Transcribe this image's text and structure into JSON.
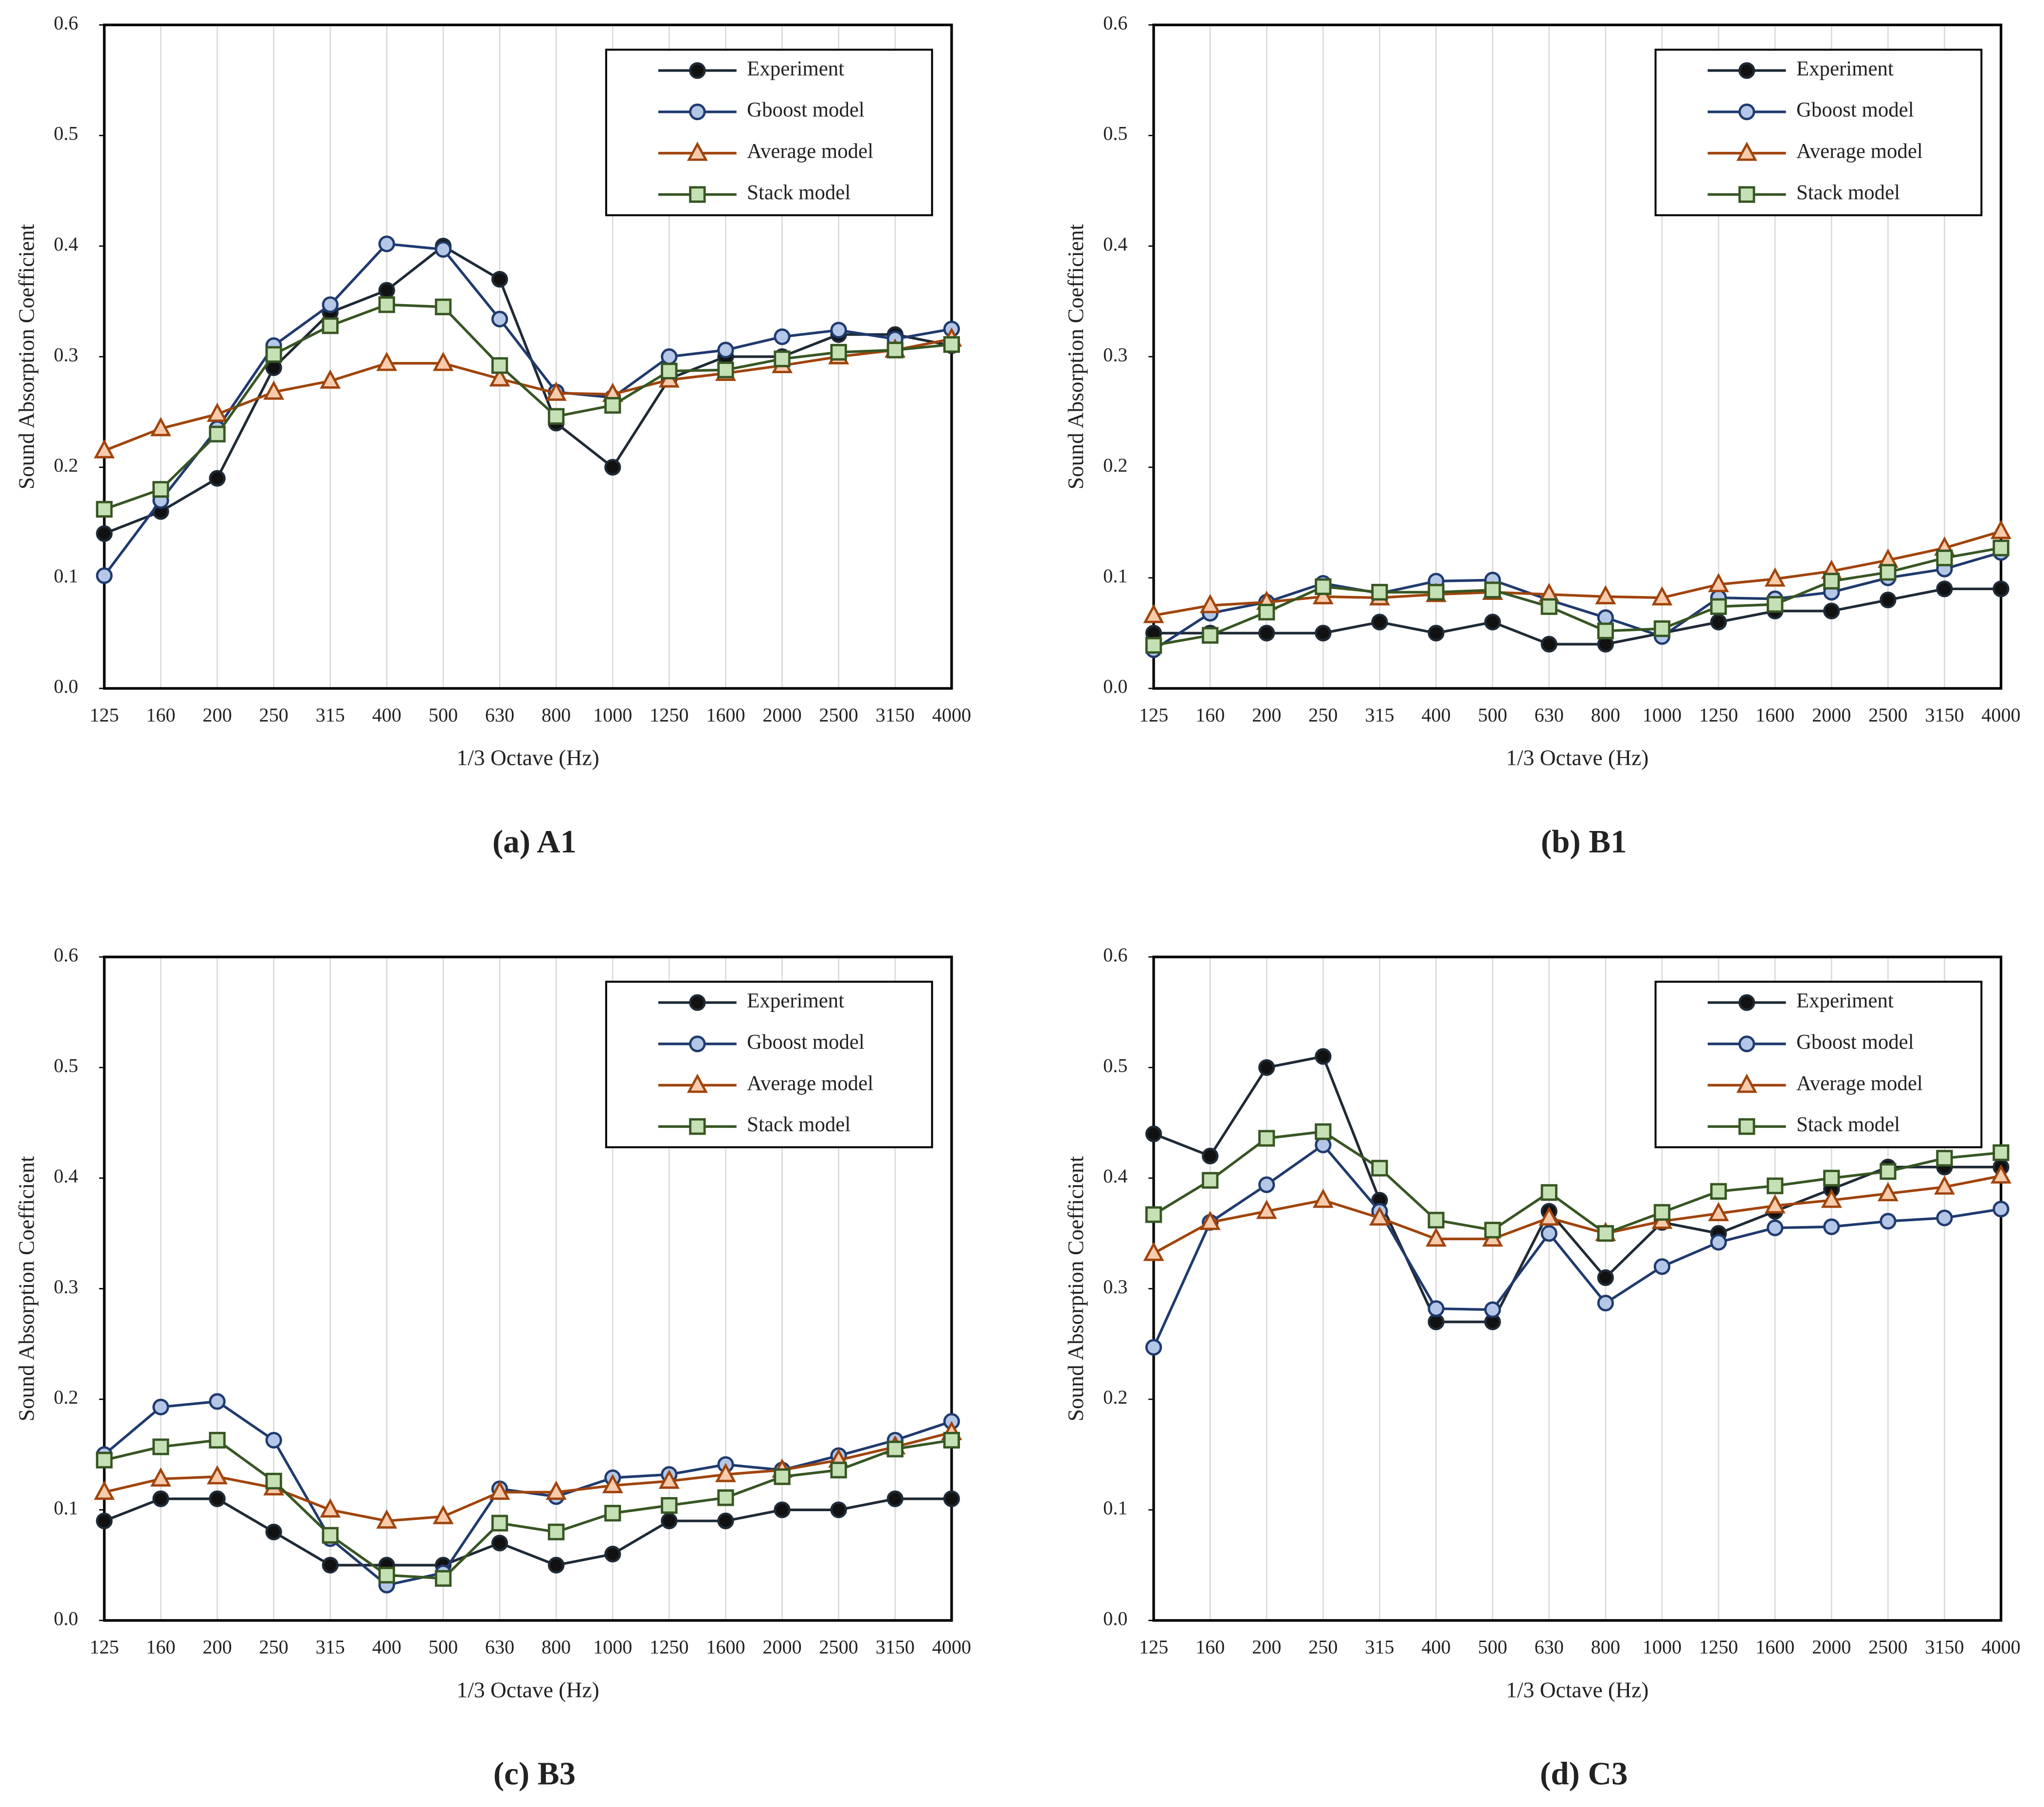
{
  "chart_data": [
    {
      "type": "line",
      "title": "(a) A1",
      "x_label": "1/3 Octave (Hz)",
      "y_label": "Sound Absorption Coefficient",
      "categories": [
        "125",
        "160",
        "200",
        "250",
        "315",
        "400",
        "500",
        "630",
        "800",
        "1000",
        "1250",
        "1600",
        "2000",
        "2500",
        "3150",
        "4000"
      ],
      "ylim": [
        0,
        0.6
      ],
      "yticks": [
        {
          "value": 0,
          "label": "0.0"
        },
        0.1,
        0.2,
        0.3,
        0.4,
        0.5,
        0.6
      ],
      "grid": "x",
      "legend": "top-right",
      "series": [
        {
          "name": "Experiment",
          "color": "#1f2a36",
          "marker": "circle",
          "marker_fill": "#111111",
          "values": [
            0.14,
            0.16,
            0.19,
            0.29,
            0.34,
            0.36,
            0.4,
            0.37,
            0.24,
            0.2,
            0.28,
            0.3,
            0.3,
            0.32,
            0.32,
            0.31
          ]
        },
        {
          "name": "Gboost model",
          "color": "#1f3a6e",
          "marker": "circle",
          "marker_fill": "#b4c7e7",
          "values": [
            0.102,
            0.17,
            0.235,
            0.31,
            0.347,
            0.402,
            0.397,
            0.334,
            0.268,
            0.263,
            0.3,
            0.306,
            0.318,
            0.324,
            0.316,
            0.325
          ]
        },
        {
          "name": "Average model",
          "color": "#a0440c",
          "marker": "triangle",
          "marker_fill": "#f8cbad",
          "values": [
            0.215,
            0.235,
            0.248,
            0.268,
            0.278,
            0.294,
            0.294,
            0.28,
            0.267,
            0.266,
            0.279,
            0.285,
            0.292,
            0.3,
            0.306,
            0.316
          ]
        },
        {
          "name": "Stack model",
          "color": "#375623",
          "marker": "square",
          "marker_fill": "#c5e0b4",
          "values": [
            0.162,
            0.18,
            0.23,
            0.302,
            0.328,
            0.347,
            0.345,
            0.292,
            0.246,
            0.256,
            0.287,
            0.288,
            0.298,
            0.304,
            0.306,
            0.311
          ]
        }
      ]
    },
    {
      "type": "line",
      "title": "(b) B1",
      "x_label": "1/3 Octave (Hz)",
      "y_label": "Sound Absorption Coefficient",
      "categories": [
        "125",
        "160",
        "200",
        "250",
        "315",
        "400",
        "500",
        "630",
        "800",
        "1000",
        "1250",
        "1600",
        "2000",
        "2500",
        "3150",
        "4000"
      ],
      "ylim": [
        0,
        0.6
      ],
      "yticks": [
        {
          "value": 0,
          "label": "0.0"
        },
        0.1,
        0.2,
        0.3,
        0.4,
        0.5,
        0.6
      ],
      "grid": "x",
      "legend": "top-right",
      "series": [
        {
          "name": "Experiment",
          "color": "#1f2a36",
          "marker": "circle",
          "marker_fill": "#111111",
          "values": [
            0.05,
            0.05,
            0.05,
            0.05,
            0.06,
            0.05,
            0.06,
            0.04,
            0.04,
            0.05,
            0.06,
            0.07,
            0.07,
            0.08,
            0.09,
            0.09
          ]
        },
        {
          "name": "Gboost model",
          "color": "#1f3a6e",
          "marker": "circle",
          "marker_fill": "#b4c7e7",
          "values": [
            0.035,
            0.068,
            0.078,
            0.095,
            0.086,
            0.097,
            0.098,
            0.08,
            0.064,
            0.047,
            0.082,
            0.081,
            0.087,
            0.1,
            0.108,
            0.123
          ]
        },
        {
          "name": "Average model",
          "color": "#a0440c",
          "marker": "triangle",
          "marker_fill": "#f8cbad",
          "values": [
            0.066,
            0.075,
            0.078,
            0.083,
            0.082,
            0.085,
            0.087,
            0.085,
            0.083,
            0.082,
            0.094,
            0.099,
            0.106,
            0.116,
            0.127,
            0.142
          ]
        },
        {
          "name": "Stack model",
          "color": "#375623",
          "marker": "square",
          "marker_fill": "#c5e0b4",
          "values": [
            0.039,
            0.048,
            0.069,
            0.092,
            0.087,
            0.087,
            0.089,
            0.074,
            0.052,
            0.054,
            0.074,
            0.076,
            0.097,
            0.105,
            0.118,
            0.127
          ]
        }
      ]
    },
    {
      "type": "line",
      "title": "(c) B3",
      "x_label": "1/3 Octave (Hz)",
      "y_label": "Sound Absorption Coefficient",
      "categories": [
        "125",
        "160",
        "200",
        "250",
        "315",
        "400",
        "500",
        "630",
        "800",
        "1000",
        "1250",
        "1600",
        "2000",
        "2500",
        "3150",
        "4000"
      ],
      "ylim": [
        0,
        0.6
      ],
      "yticks": [
        {
          "value": 0,
          "label": "0.0"
        },
        0.1,
        0.2,
        0.3,
        0.4,
        0.5,
        0.6
      ],
      "grid": "x",
      "legend": "top-right",
      "series": [
        {
          "name": "Experiment",
          "color": "#1f2a36",
          "marker": "circle",
          "marker_fill": "#111111",
          "values": [
            0.09,
            0.11,
            0.11,
            0.08,
            0.05,
            0.05,
            0.05,
            0.07,
            0.05,
            0.06,
            0.09,
            0.09,
            0.1,
            0.1,
            0.11,
            0.11
          ]
        },
        {
          "name": "Gboost model",
          "color": "#1f3a6e",
          "marker": "circle",
          "marker_fill": "#b4c7e7",
          "values": [
            0.15,
            0.193,
            0.198,
            0.163,
            0.074,
            0.032,
            0.043,
            0.119,
            0.112,
            0.129,
            0.132,
            0.141,
            0.136,
            0.149,
            0.163,
            0.18
          ]
        },
        {
          "name": "Average model",
          "color": "#a0440c",
          "marker": "triangle",
          "marker_fill": "#f8cbad",
          "values": [
            0.116,
            0.128,
            0.13,
            0.12,
            0.1,
            0.09,
            0.094,
            0.116,
            0.116,
            0.122,
            0.126,
            0.132,
            0.136,
            0.145,
            0.157,
            0.17
          ]
        },
        {
          "name": "Stack model",
          "color": "#375623",
          "marker": "square",
          "marker_fill": "#c5e0b4",
          "values": [
            0.145,
            0.157,
            0.163,
            0.126,
            0.077,
            0.041,
            0.038,
            0.088,
            0.08,
            0.097,
            0.104,
            0.111,
            0.13,
            0.136,
            0.155,
            0.163
          ]
        }
      ]
    },
    {
      "type": "line",
      "title": "(d) C3",
      "x_label": "1/3 Octave (Hz)",
      "y_label": "Sound Absorption Coefficient",
      "categories": [
        "125",
        "160",
        "200",
        "250",
        "315",
        "400",
        "500",
        "630",
        "800",
        "1000",
        "1250",
        "1600",
        "2000",
        "2500",
        "3150",
        "4000"
      ],
      "ylim": [
        0,
        0.6
      ],
      "yticks": [
        {
          "value": 0,
          "label": "0.0"
        },
        0.1,
        0.2,
        0.3,
        0.4,
        0.5,
        0.6
      ],
      "grid": "x",
      "legend": "top-right",
      "series": [
        {
          "name": "Experiment",
          "color": "#1f2a36",
          "marker": "circle",
          "marker_fill": "#111111",
          "values": [
            0.44,
            0.42,
            0.5,
            0.51,
            0.38,
            0.27,
            0.27,
            0.37,
            0.31,
            0.36,
            0.35,
            0.37,
            0.39,
            0.41,
            0.41,
            0.41
          ]
        },
        {
          "name": "Gboost model",
          "color": "#1f3a6e",
          "marker": "circle",
          "marker_fill": "#b4c7e7",
          "values": [
            0.247,
            0.36,
            0.394,
            0.43,
            0.37,
            0.282,
            0.281,
            0.35,
            0.287,
            0.32,
            0.342,
            0.355,
            0.356,
            0.361,
            0.364,
            0.372
          ]
        },
        {
          "name": "Average model",
          "color": "#a0440c",
          "marker": "triangle",
          "marker_fill": "#f8cbad",
          "values": [
            0.332,
            0.36,
            0.37,
            0.38,
            0.364,
            0.345,
            0.345,
            0.364,
            0.35,
            0.361,
            0.368,
            0.375,
            0.38,
            0.386,
            0.392,
            0.402
          ]
        },
        {
          "name": "Stack model",
          "color": "#375623",
          "marker": "square",
          "marker_fill": "#c5e0b4",
          "values": [
            0.367,
            0.398,
            0.436,
            0.442,
            0.409,
            0.362,
            0.353,
            0.387,
            0.35,
            0.369,
            0.388,
            0.393,
            0.4,
            0.406,
            0.418,
            0.423
          ]
        }
      ]
    }
  ]
}
